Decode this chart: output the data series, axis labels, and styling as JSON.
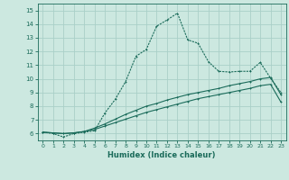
{
  "title": "",
  "xlabel": "Humidex (Indice chaleur)",
  "bg_color": "#cce8e0",
  "grid_color": "#aacfc8",
  "line_color": "#1a6b5a",
  "xlim": [
    -0.5,
    23.5
  ],
  "ylim": [
    5.5,
    15.5
  ],
  "xticks": [
    0,
    1,
    2,
    3,
    4,
    5,
    6,
    7,
    8,
    9,
    10,
    11,
    12,
    13,
    14,
    15,
    16,
    17,
    18,
    19,
    20,
    21,
    22,
    23
  ],
  "yticks": [
    6,
    7,
    8,
    9,
    10,
    11,
    12,
    13,
    14,
    15
  ],
  "main_x": [
    0,
    1,
    2,
    3,
    4,
    5,
    6,
    7,
    8,
    9,
    10,
    11,
    12,
    13,
    14,
    15,
    16,
    17,
    18,
    19,
    20,
    21,
    22,
    23
  ],
  "main_y": [
    6.1,
    6.0,
    5.75,
    6.0,
    6.1,
    6.2,
    7.5,
    8.5,
    9.8,
    11.65,
    12.15,
    13.85,
    14.3,
    14.8,
    12.85,
    12.6,
    11.25,
    10.55,
    10.5,
    10.55,
    10.55,
    11.2,
    10.05,
    9.0
  ],
  "line2_x": [
    0,
    1,
    2,
    3,
    4,
    5,
    6,
    7,
    8,
    9,
    10,
    11,
    12,
    13,
    14,
    15,
    16,
    17,
    18,
    19,
    20,
    21,
    22,
    23
  ],
  "line2_y": [
    6.1,
    6.05,
    6.0,
    6.05,
    6.15,
    6.4,
    6.7,
    7.05,
    7.4,
    7.7,
    8.0,
    8.2,
    8.45,
    8.65,
    8.85,
    9.0,
    9.15,
    9.3,
    9.5,
    9.65,
    9.8,
    10.0,
    10.1,
    8.85
  ],
  "line3_x": [
    0,
    1,
    2,
    3,
    4,
    5,
    6,
    7,
    8,
    9,
    10,
    11,
    12,
    13,
    14,
    15,
    16,
    17,
    18,
    19,
    20,
    21,
    22,
    23
  ],
  "line3_y": [
    6.1,
    6.05,
    6.0,
    6.05,
    6.15,
    6.3,
    6.55,
    6.8,
    7.05,
    7.3,
    7.55,
    7.75,
    7.95,
    8.15,
    8.35,
    8.55,
    8.7,
    8.85,
    9.0,
    9.15,
    9.3,
    9.5,
    9.6,
    8.3
  ]
}
